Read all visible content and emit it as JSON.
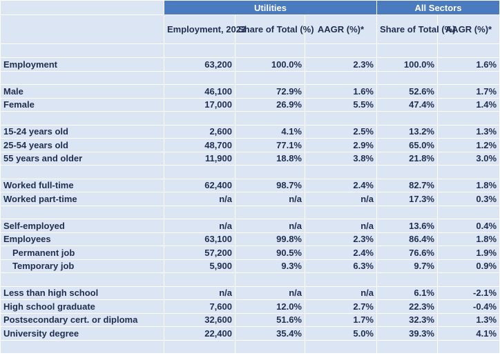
{
  "groups": {
    "utilities": "Utilities",
    "all_sectors": "All Sectors"
  },
  "headers": {
    "employment_2023": "Employment, 2023",
    "util_share": "Share of Total (%)",
    "util_aagr": "AAGR (%)*",
    "all_share": "Share of Total (%)",
    "all_aagr": "AAGR (%)*"
  },
  "rows": [
    {
      "type": "data",
      "label": "Employment",
      "values": [
        "63,200",
        "100.0%",
        "2.3%",
        "100.0%",
        "1.6%"
      ]
    },
    {
      "type": "spacer"
    },
    {
      "type": "data",
      "label": "Male",
      "values": [
        "46,100",
        "72.9%",
        "1.6%",
        "52.6%",
        "1.7%"
      ]
    },
    {
      "type": "data",
      "label": "Female",
      "values": [
        "17,000",
        "26.9%",
        "5.5%",
        "47.4%",
        "1.4%"
      ]
    },
    {
      "type": "spacer"
    },
    {
      "type": "data",
      "label": "15-24 years old",
      "values": [
        "2,600",
        "4.1%",
        "2.5%",
        "13.2%",
        "1.3%"
      ]
    },
    {
      "type": "data",
      "label": "25-54 years old",
      "values": [
        "48,700",
        "77.1%",
        "2.9%",
        "65.0%",
        "1.2%"
      ]
    },
    {
      "type": "data",
      "label": "55 years and older",
      "values": [
        "11,900",
        "18.8%",
        "3.8%",
        "21.8%",
        "3.0%"
      ]
    },
    {
      "type": "spacer"
    },
    {
      "type": "data",
      "label": "Worked full-time",
      "values": [
        "62,400",
        "98.7%",
        "2.4%",
        "82.7%",
        "1.8%"
      ]
    },
    {
      "type": "data",
      "label": "Worked part-time",
      "values": [
        "n/a",
        "n/a",
        "n/a",
        "17.3%",
        "0.3%"
      ]
    },
    {
      "type": "spacer"
    },
    {
      "type": "data",
      "label": "Self-employed",
      "values": [
        "n/a",
        "n/a",
        "n/a",
        "13.6%",
        "0.4%"
      ]
    },
    {
      "type": "data",
      "label": "Employees",
      "values": [
        "63,100",
        "99.8%",
        "2.3%",
        "86.4%",
        "1.8%"
      ]
    },
    {
      "type": "data",
      "label": "Permanent job",
      "indent": true,
      "values": [
        "57,200",
        "90.5%",
        "2.4%",
        "76.6%",
        "1.9%"
      ]
    },
    {
      "type": "data",
      "label": "Temporary job",
      "indent": true,
      "values": [
        "5,900",
        "9.3%",
        "6.3%",
        "9.7%",
        "0.9%"
      ]
    },
    {
      "type": "spacer"
    },
    {
      "type": "data",
      "label": "Less than high school",
      "values": [
        "n/a",
        "n/a",
        "n/a",
        "6.1%",
        "-2.1%"
      ]
    },
    {
      "type": "data",
      "label": "High school graduate",
      "values": [
        "7,600",
        "12.0%",
        "2.7%",
        "22.3%",
        "-0.4%"
      ]
    },
    {
      "type": "data",
      "label": "Postsecondary cert. or diploma",
      "values": [
        "32,600",
        "51.6%",
        "1.7%",
        "32.3%",
        "1.3%"
      ]
    },
    {
      "type": "data",
      "label": "University degree",
      "values": [
        "22,400",
        "35.4%",
        "5.0%",
        "39.3%",
        "4.1%"
      ]
    },
    {
      "type": "spacer"
    }
  ]
}
